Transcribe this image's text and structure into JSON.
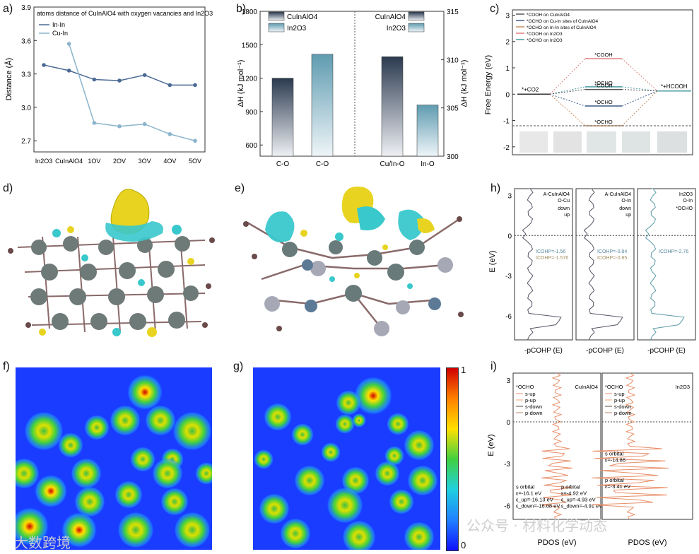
{
  "panel_labels": {
    "a": "a)",
    "b": "b)",
    "c": "c)",
    "d": "d)",
    "e": "e)",
    "f": "f)",
    "g": "g)",
    "h": "h)",
    "i": "i)"
  },
  "colors": {
    "inin": "#4a6a95",
    "cuin": "#8ab4cc",
    "bar_dark": "#2b3a4f",
    "bar_light": "#5f9bb0",
    "isosurface_yellow": "#e8d420",
    "isosurface_cyan": "#39c8cc"
  },
  "chart_data": [
    {
      "id": "a",
      "type": "line",
      "title": "atoms distance of CuInAlO4 with oxygen vacancies and In2O3",
      "ylabel": "Distance (Å)",
      "categories": [
        "In2O3",
        "CuInAlO4",
        "1OV",
        "2OV",
        "3OV",
        "4OV",
        "5OV"
      ],
      "ylim": [
        2.6,
        3.9
      ],
      "yticks": [
        "2.7",
        "3.0",
        "3.3",
        "3.6",
        "3.9"
      ],
      "series": [
        {
          "name": "In-In",
          "values": [
            3.38,
            3.33,
            3.25,
            3.24,
            3.29,
            3.2,
            3.2
          ]
        },
        {
          "name": "Cu-In",
          "values": [
            null,
            3.57,
            2.86,
            2.83,
            2.85,
            2.76,
            2.7
          ]
        }
      ]
    },
    {
      "id": "b",
      "type": "bar",
      "ylabel_left": "ΔH (kJ mol⁻¹)",
      "ylabel_right": "ΔH (kJ mol⁻¹)",
      "ylim_left": [
        500,
        1800
      ],
      "yticks_left": [
        "600",
        "900",
        "1200",
        "1500",
        "1800"
      ],
      "ylim_right": [
        300,
        315
      ],
      "yticks_right": [
        "300",
        "305",
        "310",
        "315"
      ],
      "legend": [
        "CuInAlO4",
        "In2O3"
      ],
      "categories": [
        "C-O",
        "C-O",
        "Cu/In-O",
        "In-O"
      ],
      "values": [
        1200,
        1415,
        310.3,
        305.3
      ],
      "axis": [
        "left",
        "left",
        "right",
        "right"
      ]
    },
    {
      "id": "c",
      "type": "line",
      "ylabel": "Free Energy (eV)",
      "ylim": [
        -2.3,
        3.2
      ],
      "yticks": [
        "-2",
        "-1",
        "0",
        "1",
        "2",
        "3"
      ],
      "legend": [
        "*COOH on CuInAlO4",
        "*OCHO on Cu-In sites of CuInAlO4",
        "*OCHO on In-In sites of CuInAlO4",
        "*COOH on In2O3",
        "*OCHO on In2O3"
      ],
      "states": [
        "*+CO2",
        "*+HCOOH"
      ],
      "intermediates": [
        {
          "label": "*COOH",
          "value": 1.35
        },
        {
          "label": "*OCHO",
          "value": 0.28
        },
        {
          "label": "*COOH",
          "value": 0.18
        },
        {
          "label": "*OCHO",
          "value": -0.45
        },
        {
          "label": "*OCHO",
          "value": -1.2
        }
      ],
      "final": 0.12
    },
    {
      "id": "h",
      "type": "line",
      "ylabel": "E (eV)",
      "xlabel": "-pCOHP (E)",
      "yticks": [
        "3",
        "0",
        "-3",
        "-6"
      ],
      "subpanels": [
        {
          "title": "A-CuInAlO4",
          "subtitle": "O-Cu",
          "legend": [
            "down",
            "up"
          ],
          "icohp": [
            "ICOHP=-1.56",
            "ICOHP=-1.576"
          ]
        },
        {
          "title": "A-CuInAlO4",
          "subtitle": "O-In",
          "legend": [
            "down",
            "up"
          ],
          "icohp": [
            "ICOHP=-0.84",
            "ICOHP=-0.85"
          ]
        },
        {
          "title": "In2O3",
          "subtitle": "O-In",
          "legend": [
            "*OCHO"
          ],
          "icohp": [
            "ICOHP=-2.76"
          ]
        }
      ]
    },
    {
      "id": "i",
      "type": "line",
      "ylabel": "E (eV)",
      "xlabel": "PDOS (eV)",
      "yticks": [
        "3",
        "0",
        "-3",
        "-6"
      ],
      "subpanels": [
        {
          "title": "*OCHO",
          "material": "CuInAlO4",
          "legend": [
            "s-up",
            "p-up",
            "s-down",
            "p-down"
          ],
          "s_orbital": [
            "s orbital",
            "ε=-16.1 eV",
            "ε_up=-16.13 eV",
            "ε_down=-16.08 eV"
          ],
          "p_orbital": [
            "p orbital",
            "ε=-4.92 eV",
            "ε_up=-4.93 eV",
            "ε_down=-4.91 eV"
          ]
        },
        {
          "title": "*OCHO",
          "material": "In2O3",
          "legend": [
            "s-up",
            "p-up",
            "s-down",
            "p-down"
          ],
          "s_orbital": [
            "s orbital",
            "ε=-14.86"
          ],
          "p_orbital": [
            "p orbital",
            "ε=-3.41 eV"
          ]
        }
      ]
    }
  ],
  "colorbar": {
    "max": "1",
    "min": "0"
  },
  "watermark_left": "大数跨境",
  "watermark_right": "公众号 · 材料化学动态"
}
